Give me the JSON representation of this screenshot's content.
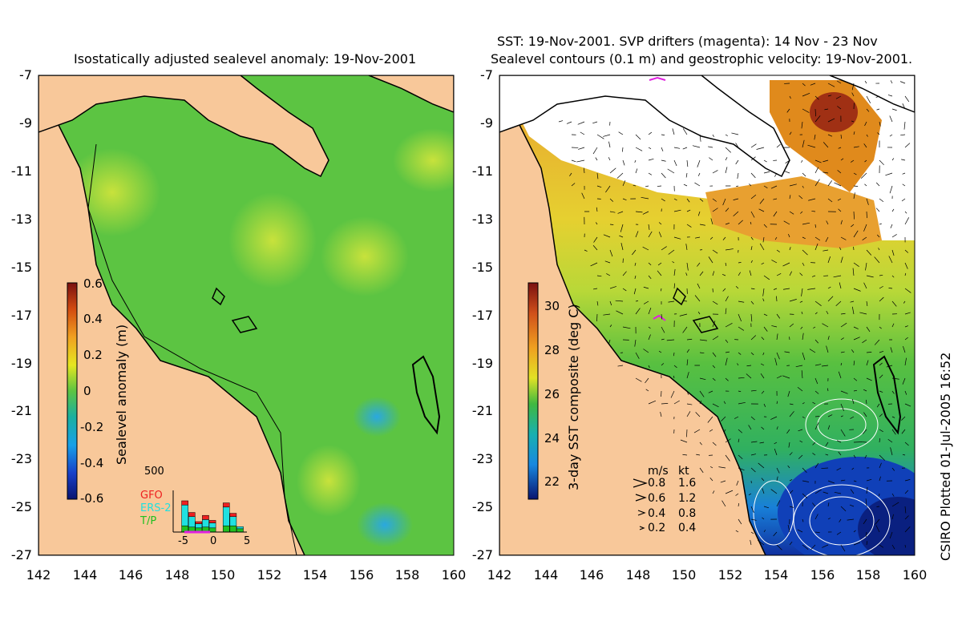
{
  "left_panel": {
    "title": "Isostatically adjusted sealevel anomaly: 19-Nov-2001",
    "y_ticks": [
      "-7",
      "-9",
      "-11",
      "-13",
      "-15",
      "-17",
      "-19",
      "-21",
      "-23",
      "-25",
      "-27"
    ],
    "x_ticks": [
      "142",
      "144",
      "146",
      "148",
      "150",
      "152",
      "154",
      "156",
      "158",
      "160"
    ],
    "colorbar": {
      "label": "Sealevel anomaly (m)",
      "ticks": [
        "0.6",
        "0.4",
        "0.2",
        "0",
        "-0.2",
        "-0.4",
        "-0.6"
      ]
    },
    "histogram": {
      "max_label": "500",
      "legend": [
        {
          "name": "GFO",
          "color": "#ee2020"
        },
        {
          "name": "ERS-2",
          "color": "#20e0e0"
        },
        {
          "name": "T/P",
          "color": "#20c020"
        }
      ],
      "x_ticks": [
        "-5",
        "0",
        "5"
      ],
      "bars": [
        {
          "gfo": 0.0,
          "ers": 0.0,
          "tp": 0.0
        },
        {
          "gfo": 0.1,
          "ers": 0.5,
          "tp": 0.15
        },
        {
          "gfo": 0.1,
          "ers": 0.25,
          "tp": 0.12
        },
        {
          "gfo": 0.05,
          "ers": 0.1,
          "tp": 0.1
        },
        {
          "gfo": 0.1,
          "ers": 0.18,
          "tp": 0.12
        },
        {
          "gfo": 0.06,
          "ers": 0.12,
          "tp": 0.1
        },
        {
          "gfo": 0.0,
          "ers": 0.0,
          "tp": 0.0
        },
        {
          "gfo": 0.1,
          "ers": 0.45,
          "tp": 0.15
        },
        {
          "gfo": 0.08,
          "ers": 0.22,
          "tp": 0.15
        },
        {
          "gfo": 0.0,
          "ers": 0.05,
          "tp": 0.08
        }
      ]
    }
  },
  "right_panel": {
    "title_line1": "SST: 19-Nov-2001. SVP drifters (magenta): 14 Nov - 23 Nov",
    "title_line2": "Sealevel contours (0.1 m) and geostrophic velocity: 19-Nov-2001.",
    "y_ticks": [
      "-7",
      "-9",
      "-11",
      "-13",
      "-15",
      "-17",
      "-19",
      "-21",
      "-23",
      "-25",
      "-27"
    ],
    "x_ticks": [
      "142",
      "144",
      "146",
      "148",
      "150",
      "152",
      "154",
      "156",
      "158",
      "160"
    ],
    "colorbar": {
      "label": "3-day SST composite (deg C)",
      "ticks": [
        "30",
        "28",
        "26",
        "24",
        "22"
      ]
    },
    "velocity_legend": {
      "header_ms": "m/s",
      "header_kt": "kt",
      "rows": [
        {
          "ms": "0.8",
          "kt": "1.6"
        },
        {
          "ms": "0.6",
          "kt": "1.2"
        },
        {
          "ms": "0.4",
          "kt": "0.8"
        },
        {
          "ms": "0.2",
          "kt": "0.4"
        }
      ]
    }
  },
  "footer": {
    "credit": "CSIRO Plotted 01-Jul-2005 16:52"
  },
  "colors": {
    "land": "#f8c89a",
    "sla_field": "#5cc442",
    "sst_warm": "#e08a1c",
    "coast": "#000000",
    "drifter": "#e020e0"
  }
}
